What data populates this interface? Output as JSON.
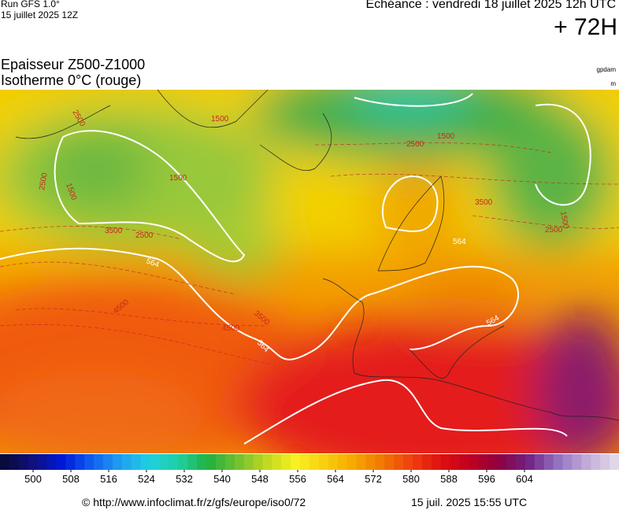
{
  "header": {
    "run": "Run GFS 1.0°",
    "run_date": "15 juillet 2025 12Z",
    "forecast": "Echéance : vendredi 18 juillet 2025 12h UTC",
    "lead": "+ 72H"
  },
  "title": {
    "line1": "Epaisseur Z500-Z1000",
    "line2": "Isotherme 0°C (rouge)",
    "unit1": "gpdam",
    "unit2": "m"
  },
  "map": {
    "contour_labels": [
      "2500",
      "1500",
      "1500",
      "2500",
      "1500",
      "3500",
      "2500",
      "564",
      "4500",
      "3500",
      "4500",
      "564",
      "2500",
      "1500",
      "564",
      "564",
      "2500",
      "1500",
      "3500"
    ]
  },
  "colorbar": {
    "ticks": [
      500,
      508,
      516,
      524,
      532,
      540,
      548,
      556,
      564,
      572,
      580,
      588,
      596,
      604
    ]
  },
  "footer": {
    "source": "© http://www.infoclimat.fr/z/gfs/europe/iso0/72",
    "timestamp": "15 juil. 2025 15:55 UTC"
  }
}
